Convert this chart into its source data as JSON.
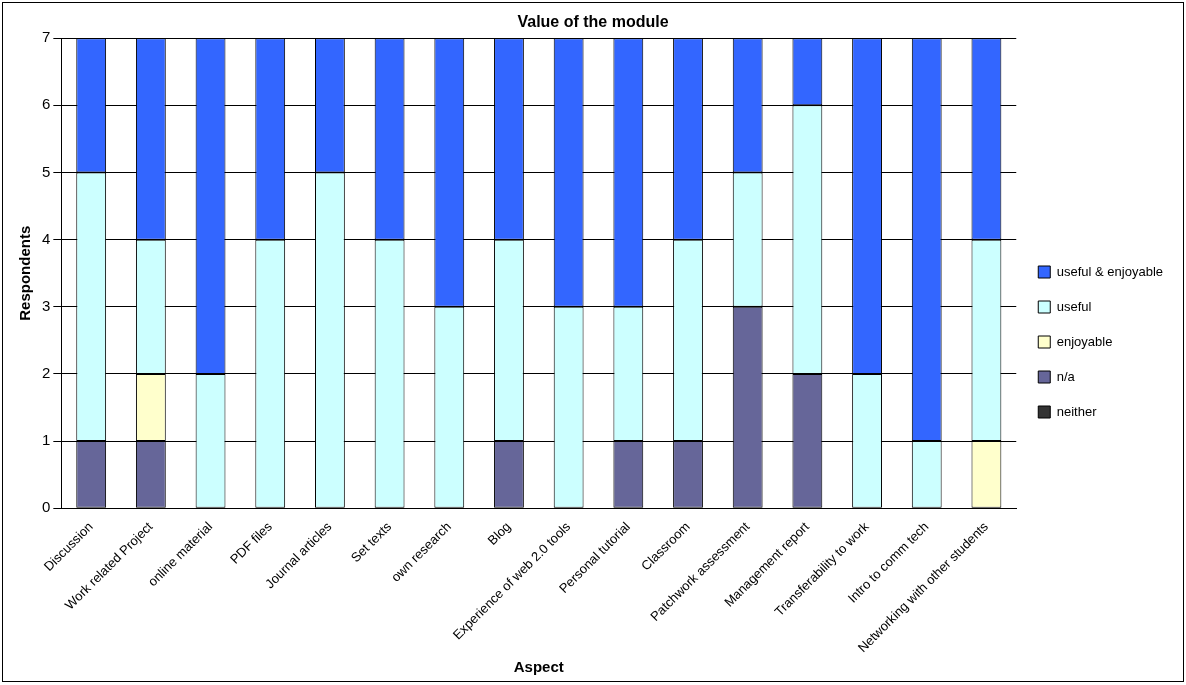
{
  "chart_data": {
    "type": "bar",
    "title": "Value of the module",
    "xlabel": "Aspect",
    "ylabel": "Respondents",
    "categories": [
      "Discussion",
      "Work related Project",
      "online material",
      "PDF files",
      "Journal articles",
      "Set texts",
      "own research",
      "Blog",
      "Experience of web 2.0 tools",
      "Personal tutorial",
      "Classroom",
      "Patchwork assessment",
      "Management report",
      "Transferability to work",
      "Intro to comm tech",
      "Networking with other students"
    ],
    "stacked": true,
    "series": [
      {
        "name": "neither",
        "color": "#333333",
        "values": [
          0,
          0,
          0,
          0,
          0,
          0,
          0,
          0,
          0,
          0,
          0,
          0,
          0,
          0,
          0,
          0
        ]
      },
      {
        "name": "n/a",
        "color": "#666699",
        "values": [
          1,
          1,
          0,
          0,
          0,
          0,
          0,
          1,
          0,
          1,
          1,
          3,
          2,
          0,
          0,
          0
        ]
      },
      {
        "name": "enjoyable",
        "color": "#ffffcc",
        "values": [
          0,
          1,
          0,
          0,
          0,
          0,
          0,
          0,
          0,
          0,
          0,
          0,
          0,
          0,
          0,
          1
        ]
      },
      {
        "name": "useful",
        "color": "#ccffff",
        "values": [
          4,
          2,
          2,
          4,
          5,
          4,
          3,
          3,
          3,
          2,
          3,
          2,
          4,
          2,
          1,
          3
        ]
      },
      {
        "name": "useful & enjoyable",
        "color": "#3366ff",
        "values": [
          2,
          3,
          5,
          3,
          2,
          3,
          4,
          3,
          4,
          4,
          3,
          2,
          1,
          5,
          6,
          3
        ]
      }
    ],
    "ylim": [
      0,
      7
    ],
    "yticks": [
      0,
      1,
      2,
      3,
      4,
      5,
      6,
      7
    ],
    "grid": "y",
    "legend": "right"
  }
}
